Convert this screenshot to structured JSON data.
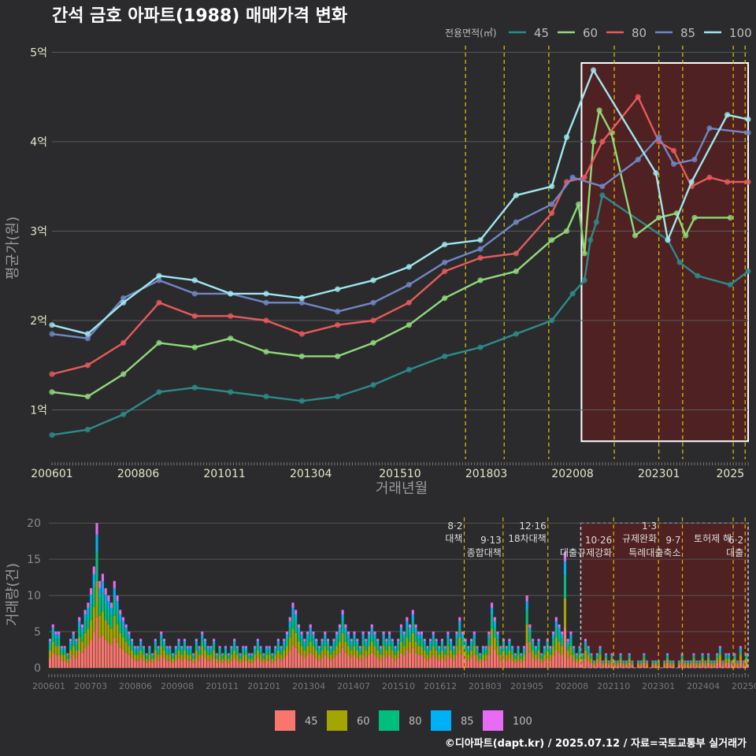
{
  "chart_data": [
    {
      "type": "line",
      "title": "간석 금호 아파트(1988) 매매가격 변화",
      "xlabel": "거래년월",
      "ylabel": "평균가(원)",
      "legend_title": "전용면적(㎡)",
      "legend_position": "top-right",
      "x_ticks": [
        "200601",
        "200806",
        "201011",
        "201304",
        "201510",
        "201803",
        "202008",
        "202301",
        "2025"
      ],
      "y_ticks": [
        "1억",
        "2억",
        "3억",
        "4억",
        "5억"
      ],
      "y_tick_values": [
        1,
        2,
        3,
        4,
        5
      ],
      "ylim": [
        0.45,
        5.1
      ],
      "x_range_months": [
        "200601",
        "202507"
      ],
      "policy_lines": [
        "201708",
        "201809",
        "201912",
        "202110",
        "202301",
        "202309",
        "202502",
        "202506"
      ],
      "highlight_period": [
        "202011",
        "202507"
      ],
      "series": [
        {
          "name": "45",
          "color": "#2a8c8c",
          "points": [
            [
              "200601",
              0.72
            ],
            [
              "200701",
              0.78
            ],
            [
              "200801",
              0.95
            ],
            [
              "200901",
              1.2
            ],
            [
              "201001",
              1.25
            ],
            [
              "201101",
              1.2
            ],
            [
              "201201",
              1.15
            ],
            [
              "201301",
              1.1
            ],
            [
              "201401",
              1.15
            ],
            [
              "201501",
              1.28
            ],
            [
              "201601",
              1.45
            ],
            [
              "201701",
              1.6
            ],
            [
              "201801",
              1.7
            ],
            [
              "201901",
              1.85
            ],
            [
              "202001",
              2.0
            ],
            [
              "202008",
              2.3
            ],
            [
              "202012",
              2.45
            ],
            [
              "202102",
              2.9
            ],
            [
              "202104",
              3.1
            ],
            [
              "202106",
              3.4
            ],
            [
              "202304",
              2.9
            ],
            [
              "202308",
              2.65
            ],
            [
              "202402",
              2.5
            ],
            [
              "202501",
              2.4
            ],
            [
              "202507",
              2.55
            ]
          ]
        },
        {
          "name": "60",
          "color": "#8fd97a",
          "points": [
            [
              "200601",
              1.2
            ],
            [
              "200701",
              1.15
            ],
            [
              "200801",
              1.4
            ],
            [
              "200901",
              1.75
            ],
            [
              "201001",
              1.7
            ],
            [
              "201101",
              1.8
            ],
            [
              "201201",
              1.65
            ],
            [
              "201301",
              1.6
            ],
            [
              "201401",
              1.6
            ],
            [
              "201501",
              1.75
            ],
            [
              "201601",
              1.95
            ],
            [
              "201701",
              2.25
            ],
            [
              "201801",
              2.45
            ],
            [
              "201901",
              2.55
            ],
            [
              "202001",
              2.9
            ],
            [
              "202006",
              3.0
            ],
            [
              "202010",
              3.3
            ],
            [
              "202012",
              2.75
            ],
            [
              "202103",
              4.0
            ],
            [
              "202105",
              4.35
            ],
            [
              "202109",
              4.1
            ],
            [
              "202205",
              2.95
            ],
            [
              "202301",
              3.15
            ],
            [
              "202307",
              3.2
            ],
            [
              "202310",
              2.95
            ],
            [
              "202401",
              3.15
            ],
            [
              "202501",
              3.15
            ]
          ]
        },
        {
          "name": "80",
          "color": "#e85a5a",
          "points": [
            [
              "200601",
              1.4
            ],
            [
              "200701",
              1.5
            ],
            [
              "200801",
              1.75
            ],
            [
              "200901",
              2.2
            ],
            [
              "201001",
              2.05
            ],
            [
              "201101",
              2.05
            ],
            [
              "201201",
              2.0
            ],
            [
              "201301",
              1.85
            ],
            [
              "201401",
              1.95
            ],
            [
              "201501",
              2.0
            ],
            [
              "201601",
              2.2
            ],
            [
              "201701",
              2.55
            ],
            [
              "201801",
              2.7
            ],
            [
              "201901",
              2.75
            ],
            [
              "202001",
              3.2
            ],
            [
              "202006",
              3.55
            ],
            [
              "202012",
              3.6
            ],
            [
              "202106",
              4.0
            ],
            [
              "202206",
              4.5
            ],
            [
              "202301",
              4.0
            ],
            [
              "202306",
              3.9
            ],
            [
              "202312",
              3.5
            ],
            [
              "202406",
              3.6
            ],
            [
              "202412",
              3.55
            ],
            [
              "202507",
              3.55
            ]
          ]
        },
        {
          "name": "85",
          "color": "#6f87c4",
          "points": [
            [
              "200601",
              1.85
            ],
            [
              "200701",
              1.8
            ],
            [
              "200801",
              2.25
            ],
            [
              "200901",
              2.45
            ],
            [
              "201001",
              2.3
            ],
            [
              "201101",
              2.3
            ],
            [
              "201201",
              2.2
            ],
            [
              "201301",
              2.2
            ],
            [
              "201401",
              2.1
            ],
            [
              "201501",
              2.2
            ],
            [
              "201601",
              2.4
            ],
            [
              "201701",
              2.65
            ],
            [
              "201801",
              2.8
            ],
            [
              "201901",
              3.1
            ],
            [
              "202001",
              3.3
            ],
            [
              "202008",
              3.6
            ],
            [
              "202106",
              3.5
            ],
            [
              "202206",
              3.8
            ],
            [
              "202301",
              4.05
            ],
            [
              "202306",
              3.75
            ],
            [
              "202401",
              3.8
            ],
            [
              "202406",
              4.15
            ],
            [
              "202507",
              4.1
            ]
          ]
        },
        {
          "name": "100",
          "color": "#9ee8f0",
          "points": [
            [
              "200601",
              1.95
            ],
            [
              "200701",
              1.85
            ],
            [
              "200801",
              2.2
            ],
            [
              "200901",
              2.5
            ],
            [
              "201001",
              2.45
            ],
            [
              "201101",
              2.3
            ],
            [
              "201201",
              2.3
            ],
            [
              "201301",
              2.25
            ],
            [
              "201401",
              2.35
            ],
            [
              "201501",
              2.45
            ],
            [
              "201601",
              2.6
            ],
            [
              "201701",
              2.85
            ],
            [
              "201801",
              2.9
            ],
            [
              "201901",
              3.4
            ],
            [
              "202001",
              3.5
            ],
            [
              "202006",
              4.05
            ],
            [
              "202103",
              4.8
            ],
            [
              "202212",
              3.65
            ],
            [
              "202304",
              2.9
            ],
            [
              "202312",
              3.55
            ],
            [
              "202412",
              4.3
            ],
            [
              "202507",
              4.25
            ]
          ]
        }
      ]
    },
    {
      "type": "bar",
      "stacked": true,
      "xlabel": "",
      "ylabel": "거래량(건)",
      "x_ticks": [
        "200601",
        "200703",
        "200806",
        "200908",
        "201011",
        "201201",
        "201304",
        "201407",
        "201510",
        "201612",
        "201803",
        "201905",
        "202008",
        "202110",
        "202301",
        "202404",
        "202507"
      ],
      "y_ticks": [
        0,
        5,
        10,
        15,
        20
      ],
      "ylim": [
        0,
        21
      ],
      "legend": [
        "45",
        "60",
        "80",
        "85",
        "100"
      ],
      "legend_colors": [
        "#f8766d",
        "#a3a500",
        "#00bf7d",
        "#00b0f6",
        "#e76bf3"
      ],
      "annotations": [
        {
          "month": "201708",
          "date": "8·2",
          "label": "대책"
        },
        {
          "month": "201809",
          "date": "9·13",
          "label": "종합대책"
        },
        {
          "month": "201912",
          "date": "12·16",
          "label": "18차대책"
        },
        {
          "month": "202110",
          "date": "10·26",
          "label": "대출규제강화"
        },
        {
          "month": "202301",
          "date": "1·3",
          "label": "규제완화"
        },
        {
          "month": "202309",
          "date": "9·7",
          "label": "특례대출축소"
        },
        {
          "month": "202502",
          "date": "",
          "label": "토허제 해"
        },
        {
          "month": "202506",
          "date": "6·2",
          "label": "대출"
        }
      ],
      "monthly_totals": [
        4,
        6,
        5,
        5,
        3,
        3,
        2,
        4,
        5,
        4,
        7,
        6,
        8,
        9,
        11,
        14,
        20,
        12,
        13,
        11,
        10,
        9,
        12,
        10,
        8,
        7,
        6,
        5,
        4,
        3,
        3,
        4,
        3,
        2,
        3,
        2,
        4,
        3,
        5,
        4,
        3,
        3,
        2,
        3,
        4,
        3,
        4,
        3,
        3,
        2,
        4,
        3,
        5,
        4,
        3,
        3,
        4,
        2,
        3,
        2,
        3,
        2,
        3,
        4,
        3,
        2,
        3,
        3,
        2,
        2,
        3,
        4,
        3,
        2,
        3,
        3,
        2,
        3,
        4,
        3,
        4,
        5,
        7,
        9,
        8,
        6,
        5,
        4,
        5,
        6,
        5,
        4,
        3,
        4,
        5,
        4,
        3,
        4,
        5,
        6,
        8,
        6,
        5,
        4,
        5,
        4,
        3,
        5,
        4,
        5,
        6,
        5,
        4,
        3,
        5,
        4,
        5,
        4,
        3,
        4,
        6,
        5,
        7,
        6,
        8,
        6,
        5,
        5,
        4,
        3,
        4,
        5,
        4,
        3,
        4,
        3,
        5,
        4,
        3,
        5,
        7,
        5,
        4,
        3,
        4,
        5,
        3,
        2,
        3,
        3,
        5,
        9,
        7,
        5,
        3,
        4,
        3,
        4,
        3,
        2,
        3,
        2,
        3,
        10,
        6,
        4,
        3,
        4,
        2,
        3,
        4,
        3,
        5,
        7,
        6,
        5,
        16,
        4,
        5,
        3,
        2,
        3,
        2,
        4,
        3,
        2,
        1,
        2,
        3,
        1,
        2,
        1,
        2,
        1,
        1,
        2,
        1,
        1,
        2,
        1,
        0,
        1,
        1,
        2,
        1,
        0,
        1,
        1,
        1,
        0,
        1,
        2,
        1,
        1,
        0,
        1,
        2,
        1,
        1,
        1,
        2,
        1,
        1,
        2,
        1,
        2,
        1,
        1,
        2,
        3,
        1,
        2,
        2,
        1,
        2,
        1,
        3,
        1,
        2
      ]
    }
  ],
  "credit": "©디아파트(dapt.kr) / 2025.07.12 / 자료=국토교통부 실거래가"
}
